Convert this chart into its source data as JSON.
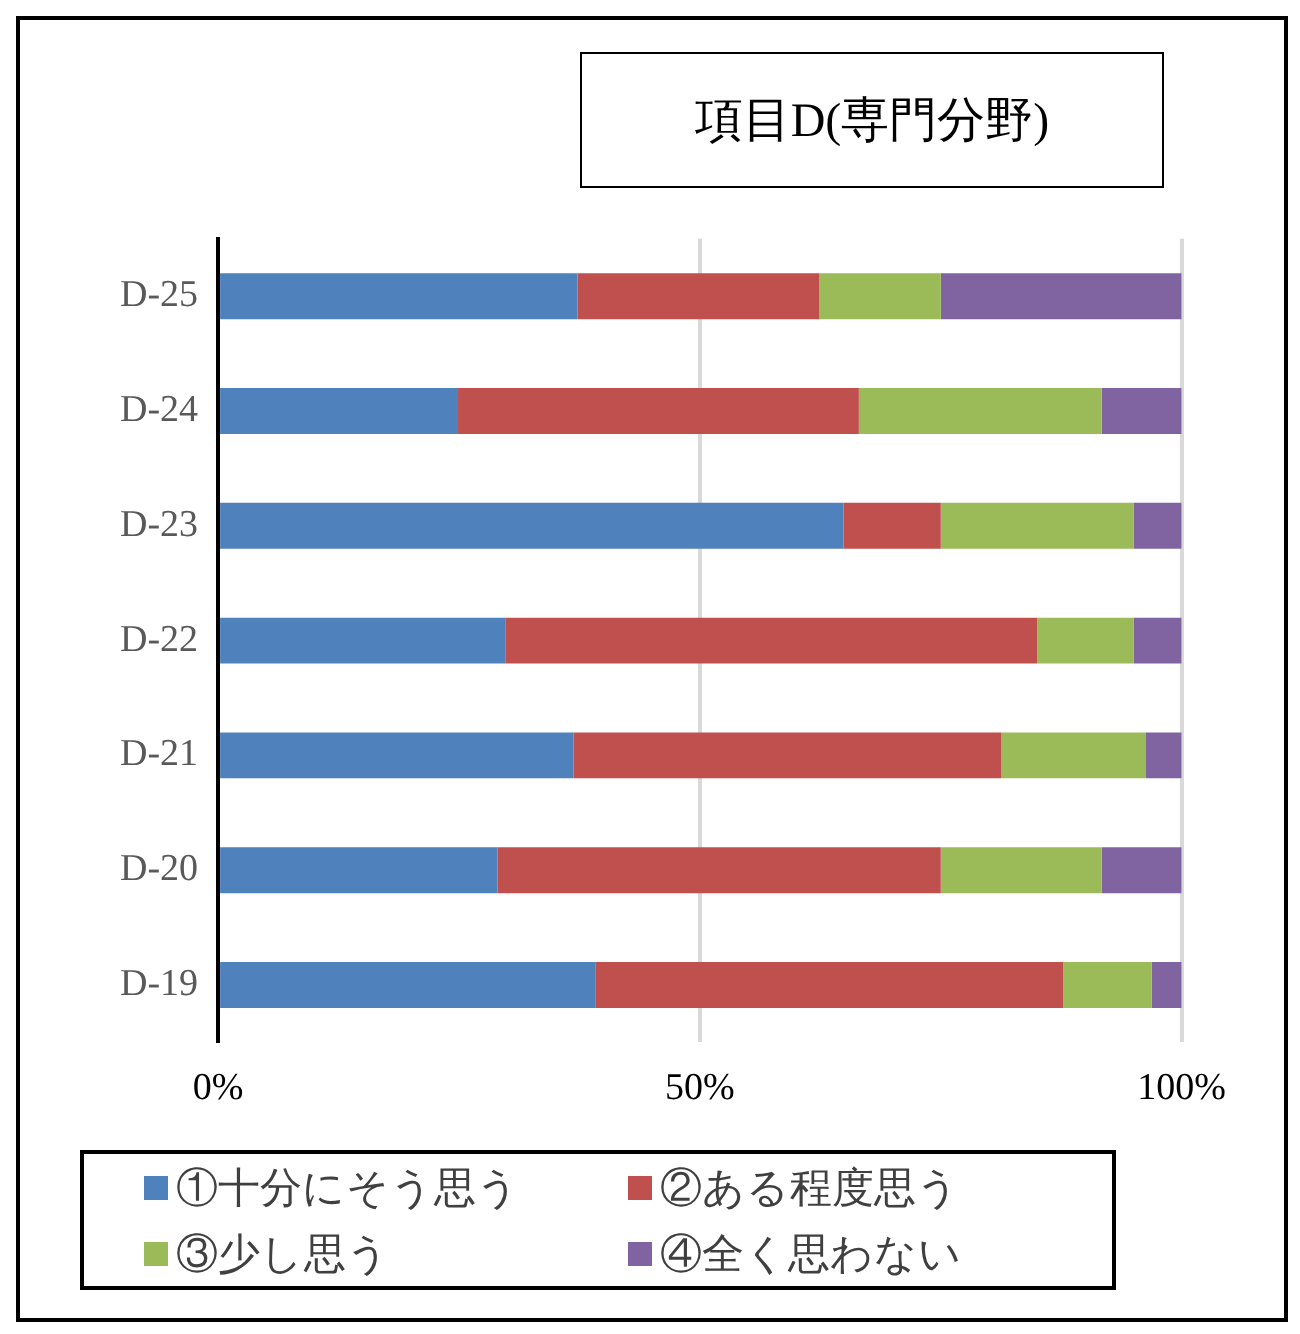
{
  "chart_data": {
    "type": "bar",
    "orientation": "horizontal",
    "stacked": true,
    "title": "項目D(専門分野)",
    "categories": [
      "D-25",
      "D-24",
      "D-23",
      "D-22",
      "D-21",
      "D-20",
      "D-19"
    ],
    "series": [
      {
        "name": "①十分にそう思う",
        "color": "#4f81bd",
        "values": [
          37.3,
          24.9,
          64.9,
          29.8,
          36.9,
          29.0,
          39.2
        ]
      },
      {
        "name": "②ある程度思う",
        "color": "#c0504d",
        "values": [
          25.1,
          41.6,
          10.1,
          55.2,
          44.4,
          46.0,
          48.5
        ]
      },
      {
        "name": "③少し思う",
        "color": "#9bbb59",
        "values": [
          12.6,
          25.2,
          20.0,
          10.0,
          15.0,
          16.7,
          9.2
        ]
      },
      {
        "name": "④全く思わない",
        "color": "#8064a2",
        "values": [
          25.0,
          8.3,
          5.0,
          5.0,
          3.7,
          8.3,
          3.1
        ]
      }
    ],
    "xlim": [
      0,
      100
    ],
    "xticks": [
      {
        "value": 0,
        "label": "0%"
      },
      {
        "value": 50,
        "label": "50%"
      },
      {
        "value": 100,
        "label": "100%"
      }
    ],
    "grid": "x",
    "legend": "bottom"
  }
}
